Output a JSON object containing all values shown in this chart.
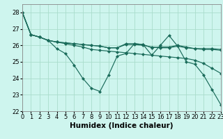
{
  "title": "",
  "xlabel": "Humidex (Indice chaleur)",
  "background_color": "#cef5ee",
  "grid_color": "#aaddcc",
  "line_color": "#1a6b5a",
  "x": [
    0,
    1,
    2,
    3,
    4,
    5,
    6,
    7,
    8,
    9,
    10,
    11,
    12,
    13,
    14,
    15,
    16,
    17,
    18,
    19,
    20,
    21,
    22,
    23
  ],
  "series": [
    [
      28.0,
      26.65,
      26.5,
      26.3,
      26.2,
      26.15,
      26.1,
      26.05,
      26.0,
      25.95,
      25.85,
      25.85,
      26.1,
      26.1,
      26.05,
      25.85,
      25.9,
      25.9,
      26.0,
      25.9,
      25.8,
      25.8,
      25.8,
      25.75
    ],
    [
      28.0,
      26.65,
      26.5,
      26.3,
      26.2,
      26.15,
      26.1,
      26.05,
      26.0,
      25.95,
      25.85,
      25.85,
      26.05,
      26.05,
      26.0,
      25.9,
      25.85,
      25.85,
      25.95,
      25.85,
      25.8,
      25.75,
      25.75,
      25.7
    ],
    [
      28.0,
      26.65,
      26.5,
      26.3,
      25.8,
      25.5,
      24.8,
      24.0,
      23.4,
      23.2,
      24.2,
      25.35,
      25.5,
      26.1,
      26.05,
      25.4,
      26.0,
      26.6,
      25.95,
      25.0,
      24.85,
      24.2,
      23.3,
      22.4
    ],
    [
      28.0,
      26.65,
      26.5,
      26.3,
      26.2,
      26.1,
      26.0,
      25.9,
      25.75,
      25.7,
      25.65,
      25.6,
      25.55,
      25.5,
      25.45,
      25.4,
      25.35,
      25.3,
      25.25,
      25.2,
      25.1,
      24.9,
      24.6,
      24.3
    ]
  ],
  "ylim": [
    22,
    28.5
  ],
  "yticks": [
    22,
    23,
    24,
    25,
    26,
    27,
    28
  ],
  "xlim": [
    0,
    23
  ],
  "xticks": [
    0,
    1,
    2,
    3,
    4,
    5,
    6,
    7,
    8,
    9,
    10,
    11,
    12,
    13,
    14,
    15,
    16,
    17,
    18,
    19,
    20,
    21,
    22,
    23
  ],
  "spine_color": "#888888",
  "tick_fontsize": 6.0,
  "xlabel_fontsize": 7.5,
  "marker_size": 2.2,
  "linewidth": 0.85
}
